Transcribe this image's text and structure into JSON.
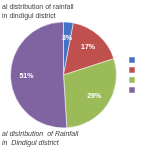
{
  "chart_data": {
    "type": "pie",
    "title": "al distribution of rainfall in dindigul district",
    "subtitle": "al distribution  of Rainfall in  Dindigul district",
    "values": [
      3,
      17,
      29,
      51
    ],
    "value_labels": [
      "3%",
      "17%",
      "29%",
      "51%"
    ],
    "data_labels": true,
    "colors": [
      "#4472c4",
      "#c0504d",
      "#9bbb59",
      "#8064a2"
    ],
    "legend": "right"
  }
}
